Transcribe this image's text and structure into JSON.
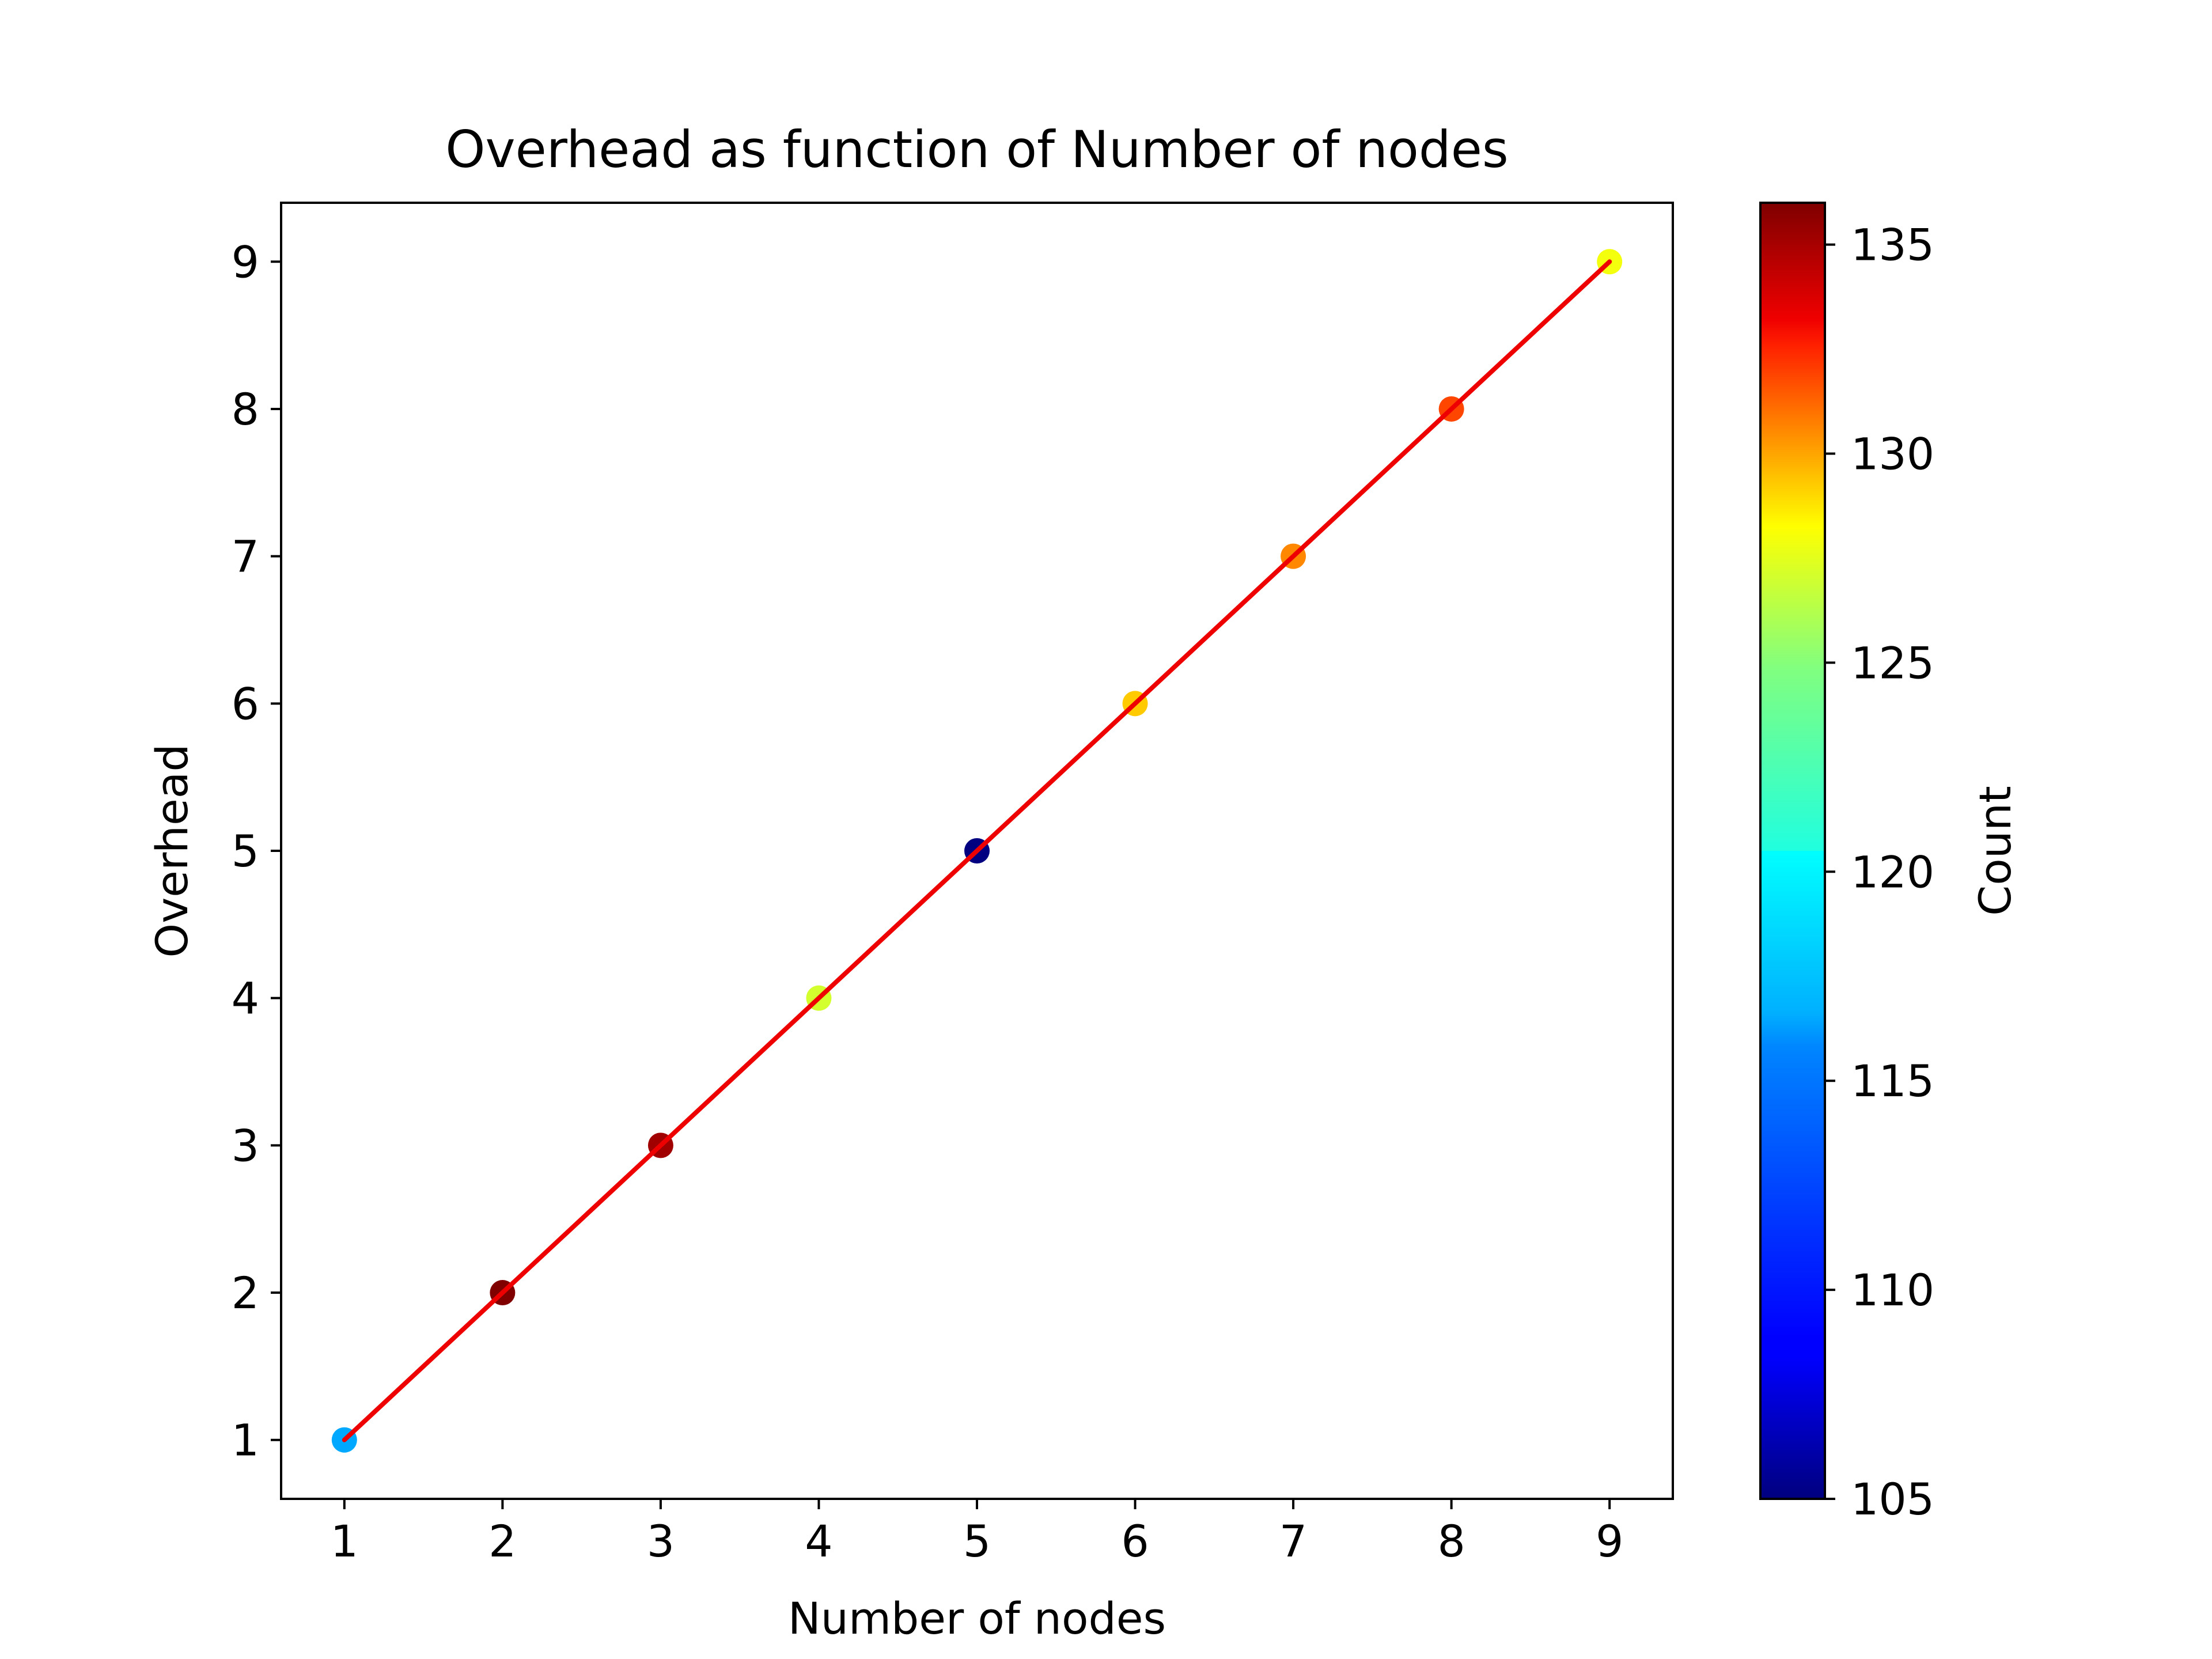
{
  "chart_data": {
    "type": "scatter",
    "title": "Overhead as function of Number of nodes",
    "xlabel": "Number of nodes",
    "ylabel": "Overhead",
    "xlim": [
      0.6,
      9.4
    ],
    "ylim": [
      0.6,
      9.4
    ],
    "xticks": [
      1,
      2,
      3,
      4,
      5,
      6,
      7,
      8,
      9
    ],
    "yticks": [
      1,
      2,
      3,
      4,
      5,
      6,
      7,
      8,
      9
    ],
    "grid": false,
    "points": [
      {
        "x": 1,
        "y": 1,
        "count": 114
      },
      {
        "x": 2,
        "y": 2,
        "count": 136
      },
      {
        "x": 3,
        "y": 3,
        "count": 135
      },
      {
        "x": 4,
        "y": 4,
        "count": 123
      },
      {
        "x": 5,
        "y": 5,
        "count": 105
      },
      {
        "x": 6,
        "y": 6,
        "count": 126
      },
      {
        "x": 7,
        "y": 7,
        "count": 128
      },
      {
        "x": 8,
        "y": 8,
        "count": 130
      },
      {
        "x": 9,
        "y": 9,
        "count": 124
      }
    ],
    "fit_line": {
      "x": [
        1,
        9
      ],
      "y": [
        1,
        9
      ],
      "color": "#ee0000"
    },
    "colorbar": {
      "label": "Count",
      "colormap": "jet",
      "range": [
        105,
        136
      ],
      "ticks": [
        105,
        110,
        115,
        120,
        125,
        130,
        135
      ]
    }
  }
}
